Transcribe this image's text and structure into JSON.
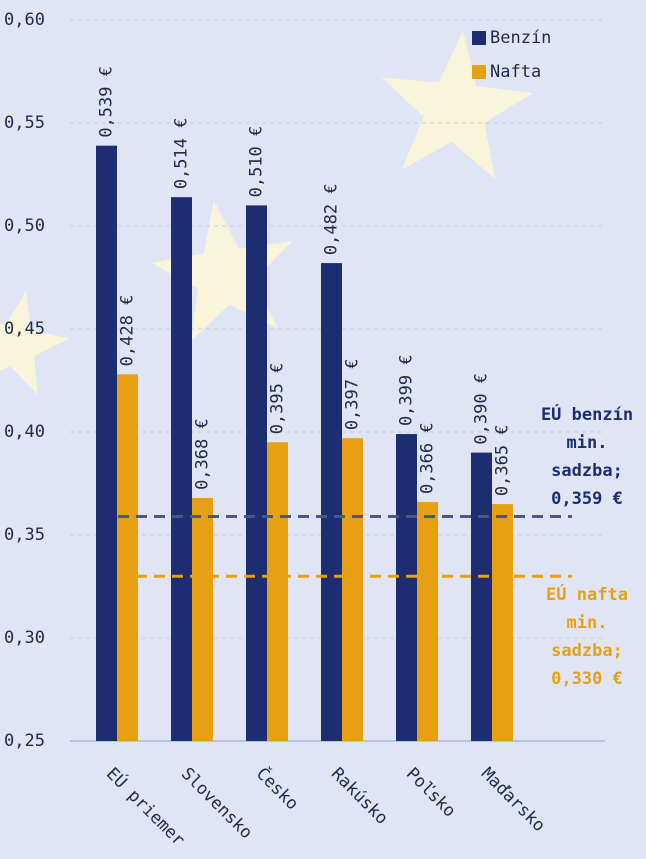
{
  "chart_data": {
    "type": "bar",
    "categories": [
      "EÚ priemer",
      "Slovensko",
      "Česko",
      "Rakúsko",
      "Poľsko",
      "Maďarsko"
    ],
    "series": [
      {
        "name": "Benzín",
        "color": "#1c2d72",
        "values": [
          0.539,
          0.514,
          0.51,
          0.482,
          0.399,
          0.39
        ],
        "value_labels": [
          "0,539 €",
          "0,514 €",
          "0,510 €",
          "0,482 €",
          "0,399 €",
          "0,390 €"
        ]
      },
      {
        "name": "Nafta",
        "color": "#e8a013",
        "values": [
          0.428,
          0.368,
          0.395,
          0.397,
          0.366,
          0.365
        ],
        "value_labels": [
          "0,428 €",
          "0,368 €",
          "0,395 €",
          "0,397 €",
          "0,366 €",
          "0,365 €"
        ]
      }
    ],
    "ylim": [
      0.25,
      0.6
    ],
    "yticks": [
      {
        "value": 0.25,
        "label": "0,25"
      },
      {
        "value": 0.3,
        "label": "0,30"
      },
      {
        "value": 0.35,
        "label": "0,35"
      },
      {
        "value": 0.4,
        "label": "0,40"
      },
      {
        "value": 0.45,
        "label": "0,45"
      },
      {
        "value": 0.5,
        "label": "0,50"
      },
      {
        "value": 0.55,
        "label": "0,55"
      },
      {
        "value": 0.6,
        "label": "0,60"
      }
    ],
    "grid": true,
    "legend": "top-right",
    "reference_lines": [
      {
        "value": 0.359,
        "color": "#4a5685",
        "label": [
          "EÚ benzín",
          "min.",
          "sadzba;",
          "0,359  €"
        ],
        "label_color": "#1c2d72"
      },
      {
        "value": 0.33,
        "color": "#e8a013",
        "label": [
          "EÚ nafta",
          "min.",
          "sadzba;",
          "0,330  €"
        ],
        "label_color": "#e8a013"
      }
    ]
  }
}
